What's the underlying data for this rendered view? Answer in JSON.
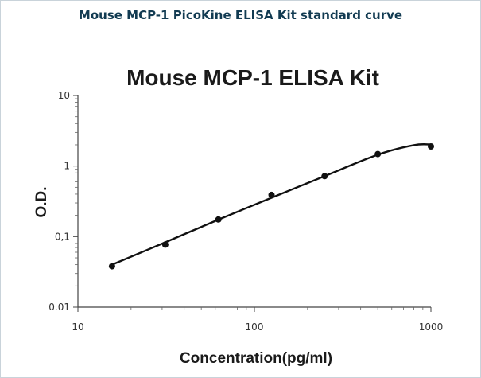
{
  "header": {
    "title": "Mouse MCP-1 PicoKine ELISA Kit standard curve"
  },
  "chart_data": {
    "type": "scatter",
    "title": "Mouse MCP-1 ELISA Kit",
    "xlabel": "Concentration(pg/ml)",
    "ylabel": "O.D.",
    "x_scale": "log",
    "y_scale": "log",
    "xlim": [
      10,
      1000
    ],
    "ylim": [
      0.01,
      10
    ],
    "x_ticks": [
      10,
      100,
      1000
    ],
    "x_tick_labels": [
      "10",
      "100",
      "1000"
    ],
    "y_ticks": [
      10,
      1,
      0.1,
      0.01
    ],
    "y_tick_labels": [
      "10",
      "1",
      "0,1",
      "0.01"
    ],
    "grid": false,
    "series": [
      {
        "x": [
          15.6,
          31.25,
          62.5,
          125,
          250,
          500,
          1000
        ],
        "y": [
          0.038,
          0.077,
          0.175,
          0.39,
          0.72,
          1.48,
          1.9
        ]
      }
    ],
    "fit_curve": {
      "x": [
        15.6,
        31.25,
        62.5,
        125,
        250,
        500,
        800,
        1000
      ],
      "y": [
        0.04,
        0.083,
        0.174,
        0.355,
        0.72,
        1.45,
        1.98,
        2.02
      ]
    }
  }
}
